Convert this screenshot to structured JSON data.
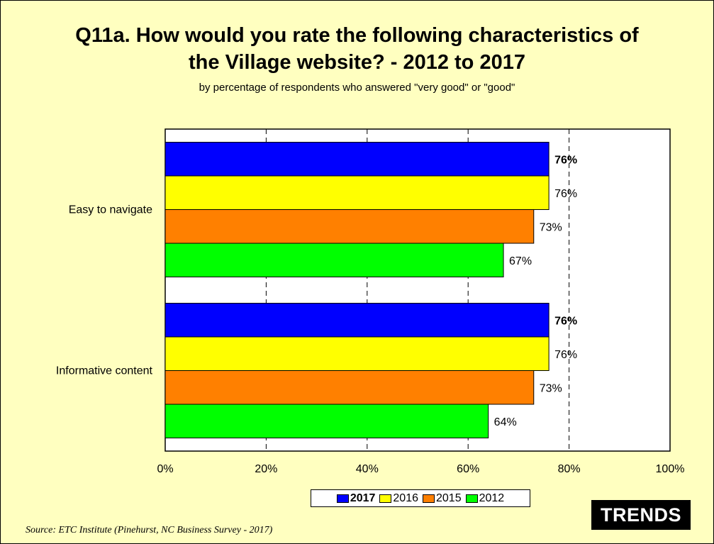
{
  "colors": {
    "background": "#ffffc0",
    "plot_background": "#ffffff",
    "2017": "#0000ff",
    "2016": "#ffff00",
    "2015": "#ff8000",
    "2012": "#00ff00"
  },
  "footer": {
    "source": "Source:  ETC Institute (Pinehurst, NC Business Survey - 2017)",
    "badge": "TRENDS"
  },
  "chart_data": {
    "type": "bar",
    "orientation": "horizontal",
    "title": "Q11a. How would you rate the following characteristics of the Village website? - 2012 to 2017",
    "title_lines": [
      "Q11a. How would you rate the following characteristics of",
      "the Village website? - 2012 to 2017"
    ],
    "subtitle": "by percentage of respondents who answered \"very good\" or \"good\"",
    "categories": [
      "Easy to navigate",
      "Informative content"
    ],
    "series": [
      {
        "name": "2017",
        "values": [
          76,
          76
        ],
        "labels": [
          "76%",
          "76%"
        ],
        "bold": true
      },
      {
        "name": "2016",
        "values": [
          76,
          76
        ],
        "labels": [
          "76%",
          "76%"
        ],
        "bold": false
      },
      {
        "name": "2015",
        "values": [
          73,
          73
        ],
        "labels": [
          "73%",
          "73%"
        ],
        "bold": false
      },
      {
        "name": "2012",
        "values": [
          67,
          64
        ],
        "labels": [
          "67%",
          "64%"
        ],
        "bold": false
      }
    ],
    "xlim": [
      0,
      100
    ],
    "xticks": [
      0,
      20,
      40,
      60,
      80,
      100
    ],
    "xtick_labels": [
      "0%",
      "20%",
      "40%",
      "60%",
      "80%",
      "100%"
    ],
    "grid": "dashed vertical",
    "legend": "bottom-center"
  }
}
